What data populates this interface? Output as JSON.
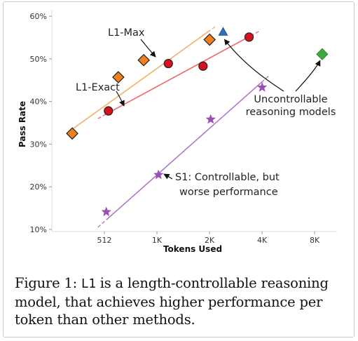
{
  "chart_data": {
    "type": "scatter",
    "xlabel": "Tokens Used",
    "ylabel": "Pass Rate",
    "xscale": "log2",
    "xlim": [
      256,
      11000
    ],
    "ylim": [
      9.5,
      61.5
    ],
    "x_ticks": [
      512,
      1024,
      2048,
      4096,
      8192
    ],
    "x_tick_labels": [
      "512",
      "1K",
      "2K",
      "4K",
      "8K"
    ],
    "y_ticks": [
      10,
      20,
      30,
      40,
      50,
      60
    ],
    "y_tick_labels": [
      "10%",
      "20%",
      "30%",
      "40%",
      "50%",
      "60%"
    ],
    "grid": false,
    "series": [
      {
        "name": "L1-Max",
        "marker": "diamond",
        "color": "#f07f1e",
        "line_color": "#f6b06a",
        "x": [
          335,
          615,
          860,
          2050
        ],
        "y": [
          32.5,
          45.7,
          49.7,
          54.5
        ],
        "fit_x": [
          310,
          2250
        ],
        "fit_y": [
          32.5,
          57.8
        ]
      },
      {
        "name": "L1-Exact",
        "marker": "circle",
        "color": "#d7121f",
        "line_color": "#f06a70",
        "x": [
          540,
          1190,
          1880,
          3450
        ],
        "y": [
          37.8,
          48.9,
          48.3,
          55.1
        ],
        "fit_x": [
          470,
          3950
        ],
        "fit_y": [
          36.0,
          56.5
        ]
      },
      {
        "name": "S1: Controllable, but worse performance",
        "marker": "star",
        "color": "#9b4fb2",
        "line_color": "#b27cc4",
        "x": [
          525,
          1045,
          2080,
          4100
        ],
        "y": [
          14.1,
          22.8,
          35.8,
          43.3
        ],
        "fit_x": [
          470,
          4500
        ],
        "fit_y": [
          10.5,
          46.1
        ]
      },
      {
        "name": "Uncontrollable reasoning models",
        "marker": "triangle",
        "color": "#2f6db5",
        "x": [
          2450
        ],
        "y": [
          56.2
        ]
      },
      {
        "name": "Uncontrollable reasoning models",
        "marker": "diamond",
        "color": "#3caa3c",
        "x": [
          9050
        ],
        "y": [
          51.1
        ]
      }
    ],
    "annotations": [
      {
        "text": "L1-Max"
      },
      {
        "text": "L1-Exact"
      },
      {
        "text": "S1: Controllable, but"
      },
      {
        "text": "worse performance"
      },
      {
        "text": "Uncontrollable"
      },
      {
        "text": "reasoning models"
      }
    ]
  },
  "caption": {
    "prefix": "Figure 1: ",
    "code": "L1",
    "rest": " is a length-controllable reasoning model, that achieves higher performance per token than other methods."
  }
}
